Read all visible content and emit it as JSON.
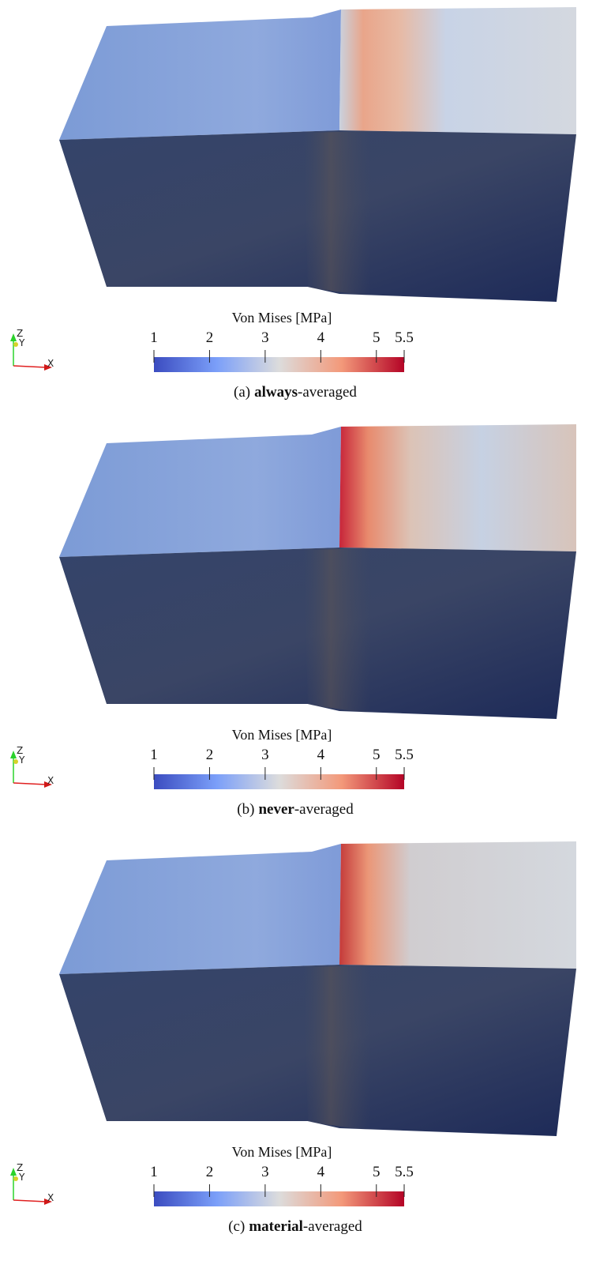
{
  "panels": [
    {
      "colorbar": {
        "title": "Von Mises [MPa]",
        "ticks": [
          1,
          2,
          3,
          4,
          5,
          5.5
        ]
      },
      "caption": {
        "label": "(a)",
        "emphasis": "always",
        "suffix": "-averaged"
      },
      "axes": {
        "z": "Z",
        "y": "Y",
        "x": "X"
      }
    },
    {
      "colorbar": {
        "title": "Von Mises [MPa]",
        "ticks": [
          1,
          2,
          3,
          4,
          5,
          5.5
        ]
      },
      "caption": {
        "label": "(b)",
        "emphasis": "never",
        "suffix": "-averaged"
      },
      "axes": {
        "z": "Z",
        "y": "Y",
        "x": "X"
      }
    },
    {
      "colorbar": {
        "title": "Von Mises [MPa]",
        "ticks": [
          1,
          2,
          3,
          4,
          5,
          5.5
        ]
      },
      "caption": {
        "label": "(c)",
        "emphasis": "material",
        "suffix": "-averaged"
      },
      "axes": {
        "z": "Z",
        "y": "Y",
        "x": "X"
      }
    }
  ]
}
